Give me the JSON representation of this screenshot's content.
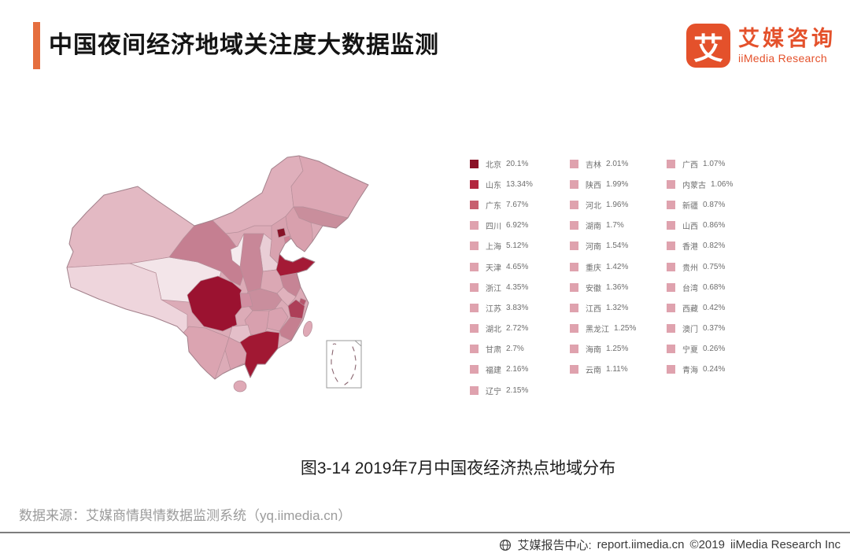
{
  "header": {
    "title": "中国夜间经济地域关注度大数据监测"
  },
  "logo": {
    "icon_char": "艾",
    "name_cn": "艾媒咨询",
    "name_en": "iiMedia Research"
  },
  "caption": "图3-14 2019年7月中国夜经济热点地域分布",
  "source": "数据来源：艾媒商情舆情数据监测系统（yq.iimedia.cn）",
  "footer": {
    "center_label": "艾媒报告中心:",
    "url": "report.iimedia.cn",
    "copyright": "©2019",
    "company": "iiMedia Research Inc"
  },
  "legend": {
    "column_sizes": [
      12,
      11,
      11
    ]
  },
  "chart_data": {
    "type": "choropleth",
    "title": "图3-14 2019年7月中国夜经济热点地域分布",
    "region_level": "China provinces",
    "metric": "夜间经济地域关注度占比",
    "unit": "%",
    "regions": [
      {
        "name": "北京",
        "value": 20.1,
        "color": "#8b1126"
      },
      {
        "name": "山东",
        "value": 13.34,
        "color": "#b2273f"
      },
      {
        "name": "广东",
        "value": 7.67,
        "color": "#c75f6f"
      },
      {
        "name": "四川",
        "value": 6.92,
        "color": "#dfa2ae"
      },
      {
        "name": "上海",
        "value": 5.12,
        "color": "#dfa2ae"
      },
      {
        "name": "天津",
        "value": 4.65,
        "color": "#dfa2ae"
      },
      {
        "name": "浙江",
        "value": 4.35,
        "color": "#dfa2ae"
      },
      {
        "name": "江苏",
        "value": 3.83,
        "color": "#dfa2ae"
      },
      {
        "name": "湖北",
        "value": 2.72,
        "color": "#dfa2ae"
      },
      {
        "name": "甘肃",
        "value": 2.7,
        "color": "#dfa2ae"
      },
      {
        "name": "福建",
        "value": 2.16,
        "color": "#dfa2ae"
      },
      {
        "name": "辽宁",
        "value": 2.15,
        "color": "#dfa2ae"
      },
      {
        "name": "吉林",
        "value": 2.01,
        "color": "#dfa2ae"
      },
      {
        "name": "陕西",
        "value": 1.99,
        "color": "#dfa2ae"
      },
      {
        "name": "河北",
        "value": 1.96,
        "color": "#dfa2ae"
      },
      {
        "name": "湖南",
        "value": 1.7,
        "color": "#dfa2ae"
      },
      {
        "name": "河南",
        "value": 1.54,
        "color": "#dfa2ae"
      },
      {
        "name": "重庆",
        "value": 1.42,
        "color": "#dfa2ae"
      },
      {
        "name": "安徽",
        "value": 1.36,
        "color": "#dfa2ae"
      },
      {
        "name": "江西",
        "value": 1.32,
        "color": "#dfa2ae"
      },
      {
        "name": "黑龙江",
        "value": 1.25,
        "color": "#dfa2ae"
      },
      {
        "name": "海南",
        "value": 1.25,
        "color": "#dfa2ae"
      },
      {
        "name": "云南",
        "value": 1.11,
        "color": "#dfa2ae"
      },
      {
        "name": "广西",
        "value": 1.07,
        "color": "#dfa2ae"
      },
      {
        "name": "内蒙古",
        "value": 1.06,
        "color": "#dfa2ae"
      },
      {
        "name": "新疆",
        "value": 0.87,
        "color": "#dfa2ae"
      },
      {
        "name": "山西",
        "value": 0.86,
        "color": "#dfa2ae"
      },
      {
        "name": "香港",
        "value": 0.82,
        "color": "#dfa2ae"
      },
      {
        "name": "贵州",
        "value": 0.75,
        "color": "#dfa2ae"
      },
      {
        "name": "台湾",
        "value": 0.68,
        "color": "#dfa2ae"
      },
      {
        "name": "西藏",
        "value": 0.42,
        "color": "#dfa2ae"
      },
      {
        "name": "澳门",
        "value": 0.37,
        "color": "#dfa2ae"
      },
      {
        "name": "宁夏",
        "value": 0.26,
        "color": "#dfa2ae"
      },
      {
        "name": "青海",
        "value": 0.24,
        "color": "#dfa2ae"
      }
    ]
  }
}
